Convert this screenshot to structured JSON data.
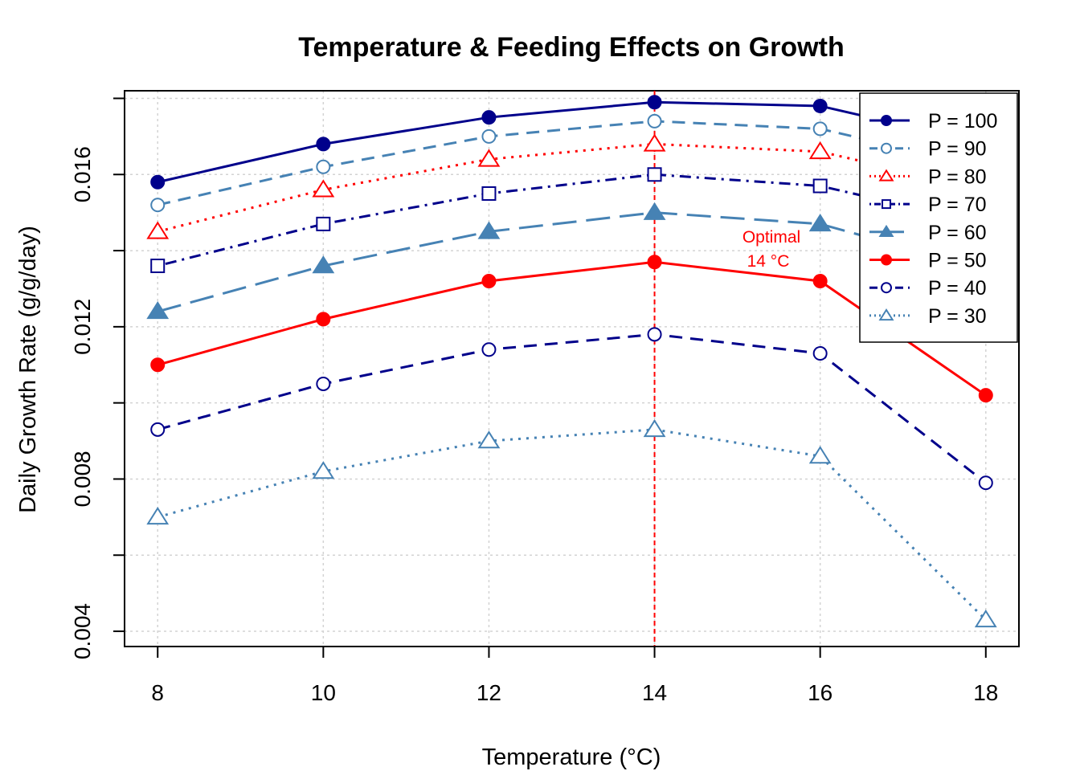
{
  "chart_data": {
    "type": "line",
    "title": "Temperature & Feeding Effects on Growth",
    "xlabel": "Temperature (°C)",
    "ylabel": "Daily Growth Rate (g/g/day)",
    "x": [
      8,
      10,
      12,
      14,
      16,
      18
    ],
    "x_ticks": [
      "8",
      "10",
      "12",
      "14",
      "16",
      "18"
    ],
    "y_ticks": [
      "0.004",
      "0.008",
      "0.012",
      "0.016"
    ],
    "y_tick_values": [
      0.004,
      0.006,
      0.008,
      0.01,
      0.012,
      0.014,
      0.016,
      0.018
    ],
    "xlim": [
      7.6,
      18.4
    ],
    "ylim": [
      0.0036,
      0.0182
    ],
    "grid": true,
    "legend_position": "top-right",
    "series": [
      {
        "name": "P = 100",
        "color": "#00008B",
        "dash": "solid",
        "marker": "filled-circle",
        "values": [
          0.0158,
          0.0168,
          0.0175,
          0.0179,
          0.0178,
          0.0168
        ]
      },
      {
        "name": "P = 90",
        "color": "#4682B4",
        "dash": "dashed",
        "marker": "open-circle",
        "values": [
          0.0152,
          0.0162,
          0.017,
          0.0174,
          0.0172,
          0.0162
        ]
      },
      {
        "name": "P = 80",
        "color": "#FF0000",
        "dash": "dotted",
        "marker": "open-triangle",
        "values": [
          0.0145,
          0.0156,
          0.0164,
          0.0168,
          0.0166,
          0.0156
        ]
      },
      {
        "name": "P = 70",
        "color": "#00008B",
        "dash": "dotdash",
        "marker": "open-square",
        "values": [
          0.0136,
          0.0147,
          0.0155,
          0.016,
          0.0157,
          0.0147
        ]
      },
      {
        "name": "P = 60",
        "color": "#4682B4",
        "dash": "longdash",
        "marker": "filled-triangle",
        "values": [
          0.0124,
          0.0136,
          0.0145,
          0.015,
          0.0147,
          0.0135
        ]
      },
      {
        "name": "P = 50",
        "color": "#FF0000",
        "dash": "solid",
        "marker": "filled-circle",
        "values": [
          0.011,
          0.0122,
          0.0132,
          0.0137,
          0.0132,
          0.0102
        ]
      },
      {
        "name": "P = 40",
        "color": "#00008B",
        "dash": "dashed",
        "marker": "open-circle",
        "values": [
          0.0093,
          0.0105,
          0.0114,
          0.0118,
          0.0113,
          0.0079
        ]
      },
      {
        "name": "P = 30",
        "color": "#4682B4",
        "dash": "dotted",
        "marker": "open-triangle",
        "values": [
          0.007,
          0.0082,
          0.009,
          0.0093,
          0.0086,
          0.0043
        ]
      }
    ],
    "reference_line": {
      "x": 14,
      "color": "#FF0000",
      "label_line1": "Optimal",
      "label_line2": "14 °C"
    }
  }
}
